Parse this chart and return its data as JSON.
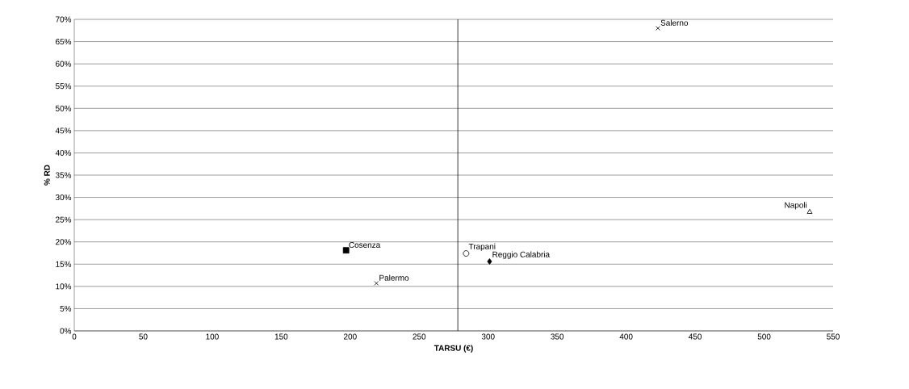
{
  "chart_data": {
    "type": "scatter",
    "xlabel": "TARSU (€)",
    "ylabel": "% RD",
    "xlim": [
      0,
      550
    ],
    "xticks": [
      0,
      50,
      100,
      150,
      200,
      250,
      300,
      350,
      400,
      450,
      500,
      550
    ],
    "ylim": [
      0,
      70
    ],
    "yticks": [
      {
        "value": 0,
        "label": "0%"
      },
      {
        "value": 5,
        "label": "5%"
      },
      {
        "value": 10,
        "label": "10%"
      },
      {
        "value": 15,
        "label": "15%"
      },
      {
        "value": 20,
        "label": "20%"
      },
      {
        "value": 25,
        "label": "25%"
      },
      {
        "value": 30,
        "label": "30%"
      },
      {
        "value": 35,
        "label": "35%"
      },
      {
        "value": 40,
        "label": "40%"
      },
      {
        "value": 45,
        "label": "45%"
      },
      {
        "value": 50,
        "label": "50%"
      },
      {
        "value": 55,
        "label": "55%"
      },
      {
        "value": 60,
        "label": "60%"
      },
      {
        "value": 65,
        "label": "65%"
      },
      {
        "value": 70,
        "label": "70%"
      }
    ],
    "grid": "y",
    "ref_lines": [
      {
        "axis": "x",
        "value": 278,
        "color": "#000000"
      }
    ],
    "series": [
      {
        "name": "Salerno",
        "color": "#000000",
        "marker": "cross",
        "x": [
          423
        ],
        "values": [
          68
        ]
      },
      {
        "name": "Napoli",
        "color": "#000000",
        "marker": "triangle",
        "x": [
          533
        ],
        "values": [
          26.7
        ]
      },
      {
        "name": "Cosenza",
        "color": "#000000",
        "marker": "square",
        "x": [
          197
        ],
        "values": [
          18.1
        ]
      },
      {
        "name": "Trapani",
        "color": "#000000",
        "marker": "circle",
        "x": [
          284
        ],
        "values": [
          17.4
        ]
      },
      {
        "name": "Reggio Calabria",
        "color": "#000000",
        "marker": "diamond",
        "x": [
          301
        ],
        "values": [
          15.6
        ]
      },
      {
        "name": "Palermo",
        "color": "#000000",
        "marker": "cross",
        "x": [
          219
        ],
        "values": [
          10.7
        ]
      }
    ]
  }
}
